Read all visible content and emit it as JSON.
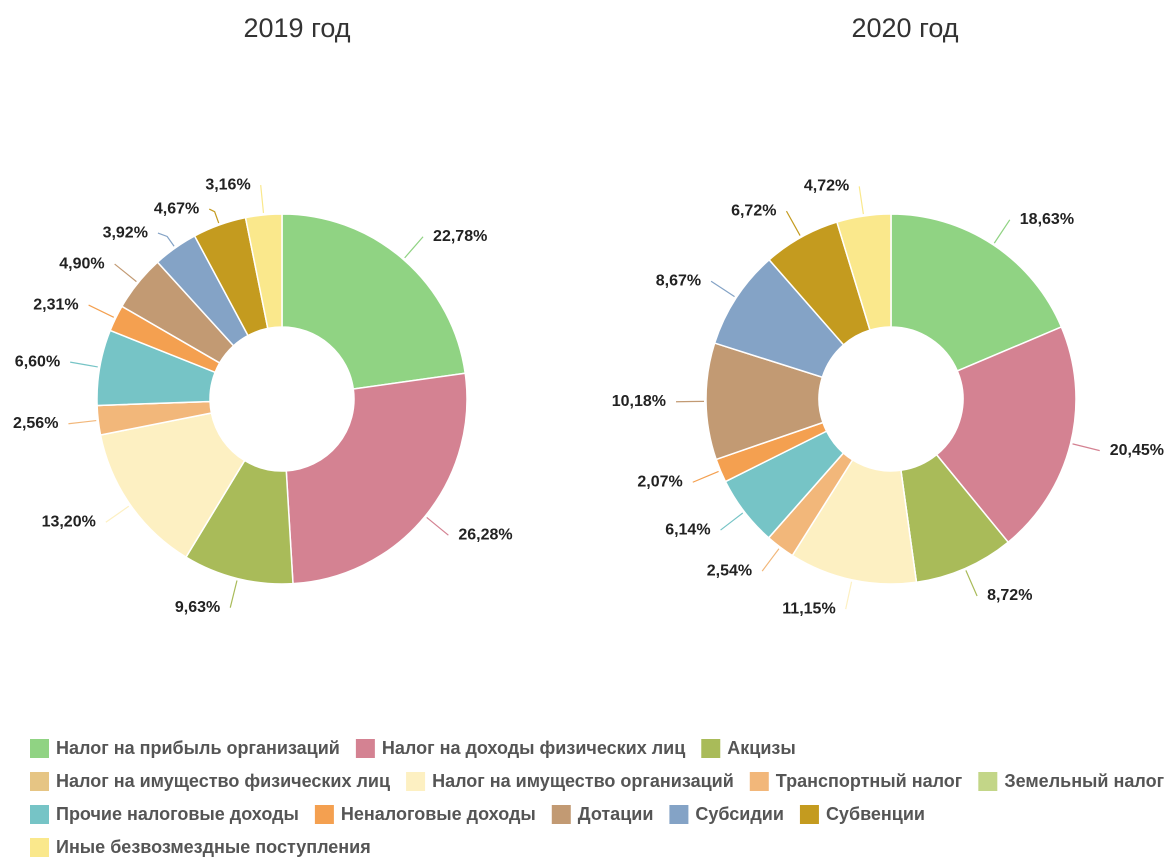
{
  "chart_data": [
    {
      "type": "pie",
      "donut": true,
      "title": "2019 год",
      "values": [
        22.78,
        26.28,
        9.63,
        0,
        13.2,
        2.56,
        0,
        6.6,
        2.31,
        4.9,
        3.92,
        4.67,
        3.16
      ],
      "value_labels": [
        "22,78%",
        "26,28%",
        "9,63%",
        null,
        "13,20%",
        "2,56%",
        null,
        "6,60%",
        "2,31%",
        "4,90%",
        "3,92%",
        "4,67%",
        "3,16%"
      ]
    },
    {
      "type": "pie",
      "donut": true,
      "title": "2020 год",
      "values": [
        18.63,
        20.45,
        8.72,
        0,
        11.15,
        2.54,
        0,
        6.14,
        2.07,
        10.18,
        8.67,
        6.72,
        4.72
      ],
      "value_labels": [
        "18,63%",
        "20,45%",
        "8,72%",
        null,
        "11,15%",
        "2,54%",
        null,
        "6,14%",
        "2,07%",
        "10,18%",
        "8,67%",
        "6,72%",
        "4,72%"
      ]
    }
  ],
  "legend": {
    "categories": [
      "Налог на прибыль организаций",
      "Налог на доходы физических лиц",
      "Акцизы",
      "Налог на имущество физических лиц",
      "Налог на имущество организаций",
      "Транспортный налог",
      "Земельный налог",
      "Прочие налоговые доходы",
      "Неналоговые доходы",
      "Дотации",
      "Субсидии",
      "Субвенции",
      "Иные безвозмездные поступления"
    ],
    "colors": [
      "#90d383",
      "#d48292",
      "#a9bb59",
      "#e6c584",
      "#fdf0c2",
      "#f2b77a",
      "#c3d688",
      "#76c4c6",
      "#f4a050",
      "#c29a73",
      "#84a3c6",
      "#c49b1f",
      "#fae88c"
    ]
  }
}
